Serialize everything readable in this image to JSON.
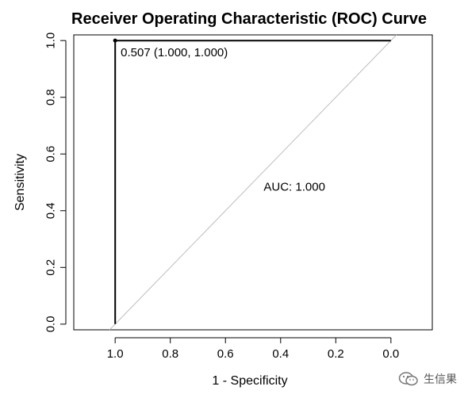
{
  "chart_data": {
    "type": "line",
    "title": "Receiver Operating Characteristic (ROC) Curve",
    "xlabel": "1 - Specificity",
    "ylabel": "Sensitivity",
    "x_reversed": true,
    "xlim": [
      1.15,
      -0.15
    ],
    "ylim": [
      -0.02,
      1.02
    ],
    "xticks": [
      1.0,
      0.8,
      0.6,
      0.4,
      0.2,
      0.0
    ],
    "xtick_labels": [
      "1.0",
      "0.8",
      "0.6",
      "0.4",
      "0.2",
      "0.0"
    ],
    "yticks": [
      0.0,
      0.2,
      0.4,
      0.6,
      0.8,
      1.0
    ],
    "ytick_labels": [
      "0.0",
      "0.2",
      "0.4",
      "0.6",
      "0.8",
      "1.0"
    ],
    "series": [
      {
        "points": [
          {
            "x": 1.0,
            "y": 0.0
          },
          {
            "x": 1.0,
            "y": 1.0
          },
          {
            "x": 0.0,
            "y": 1.0
          }
        ],
        "color": "#000000"
      }
    ],
    "reference_line": {
      "from": [
        1.0,
        0.0
      ],
      "to": [
        0.0,
        1.0
      ],
      "color": "#bdbdbd"
    },
    "threshold_point": {
      "x": 1.0,
      "y": 1.0,
      "label": "0.507 (1.000, 1.000)"
    },
    "auc_label": "AUC: 1.000",
    "grid": false
  },
  "watermark": {
    "icon": "wechat-icon",
    "text": "生信果"
  }
}
